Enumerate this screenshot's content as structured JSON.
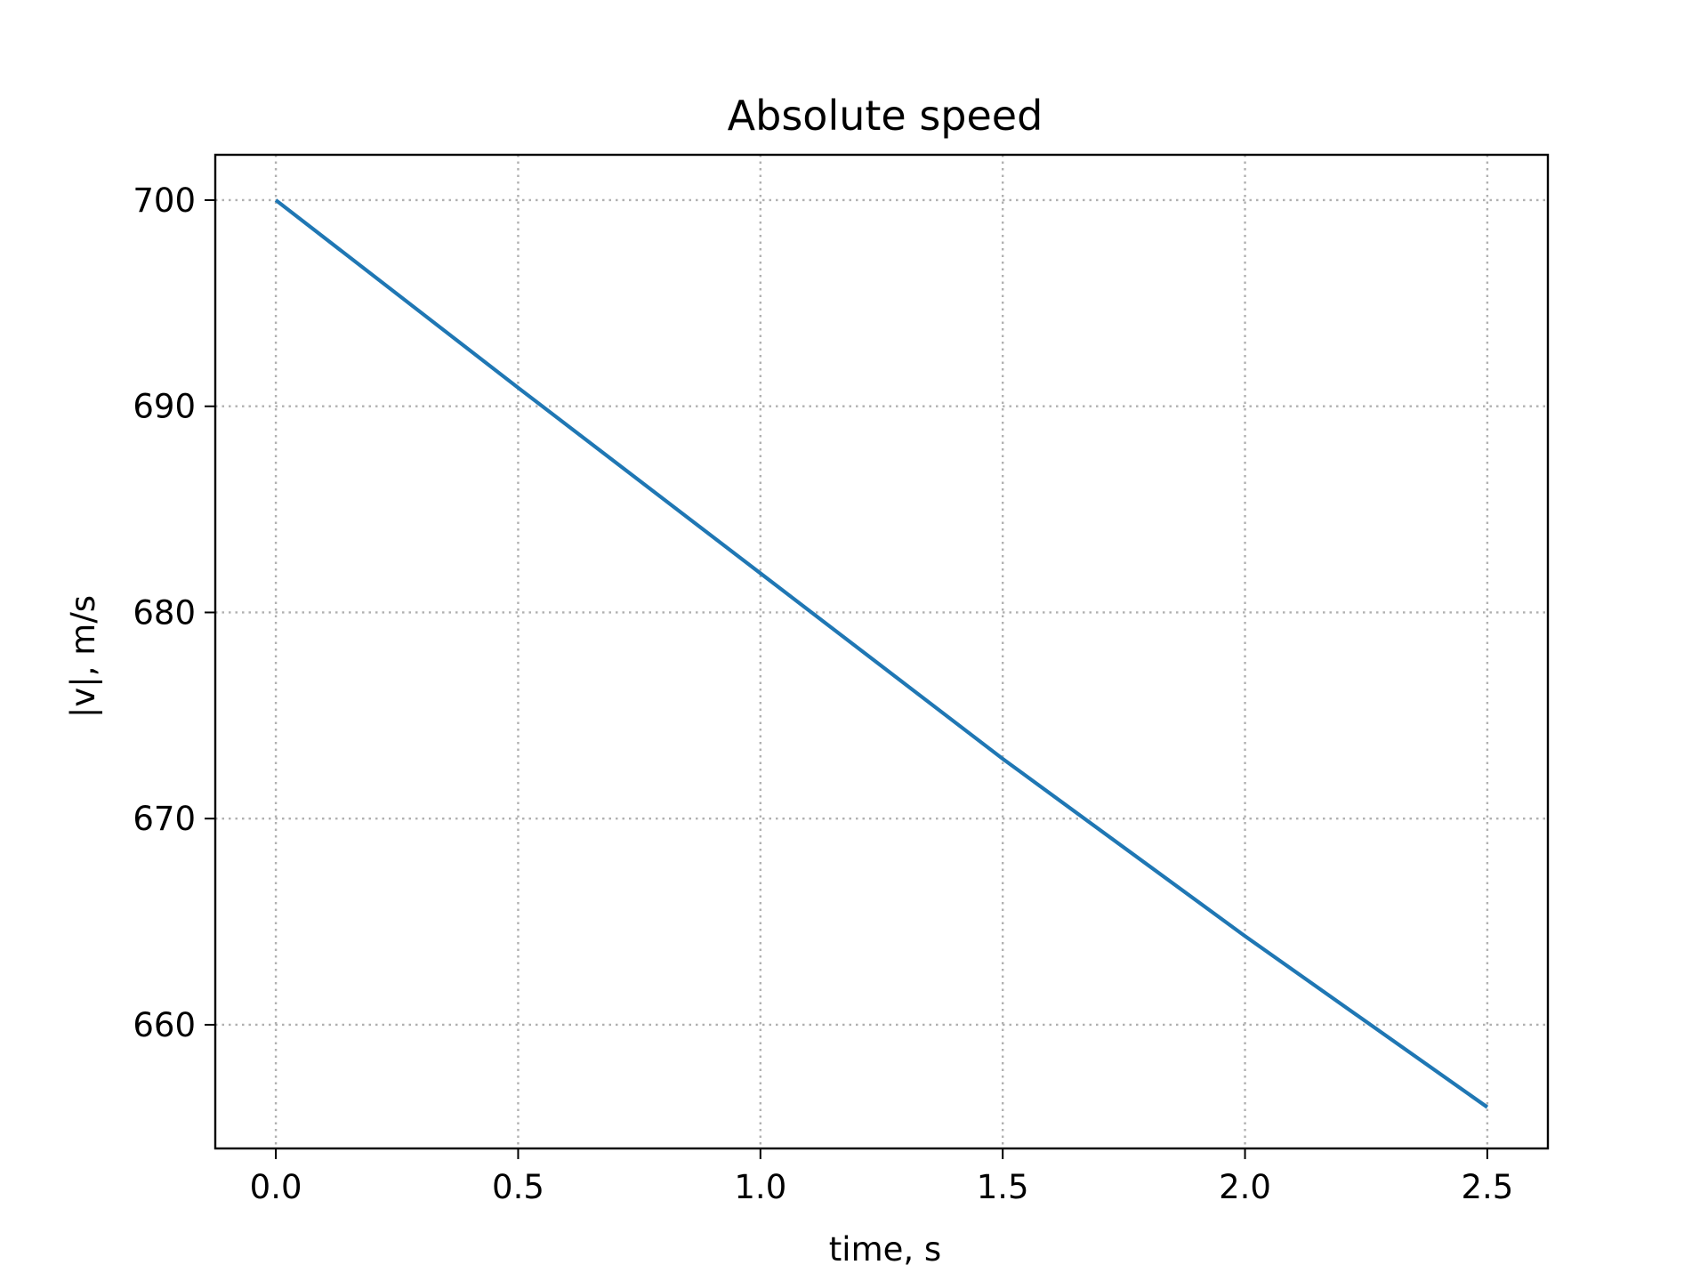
{
  "chart_data": {
    "type": "line",
    "title": "Absolute speed",
    "xlabel": "time, s",
    "ylabel": "|v|, m/s",
    "xlim": [
      -0.125,
      2.625
    ],
    "ylim": [
      654.0,
      702.2
    ],
    "xticks": [
      0.0,
      0.5,
      1.0,
      1.5,
      2.0,
      2.5
    ],
    "xtick_labels": [
      "0.0",
      "0.5",
      "1.0",
      "1.5",
      "2.0",
      "2.5"
    ],
    "yticks": [
      660,
      670,
      680,
      690,
      700
    ],
    "ytick_labels": [
      "660",
      "670",
      "680",
      "690",
      "700"
    ],
    "grid": true,
    "series": [
      {
        "color": "#1f77b4",
        "x": [
          0.0,
          0.5,
          1.0,
          1.5,
          2.0,
          2.5
        ],
        "y": [
          700.0,
          690.9,
          681.9,
          672.9,
          664.3,
          656.0
        ]
      }
    ]
  }
}
